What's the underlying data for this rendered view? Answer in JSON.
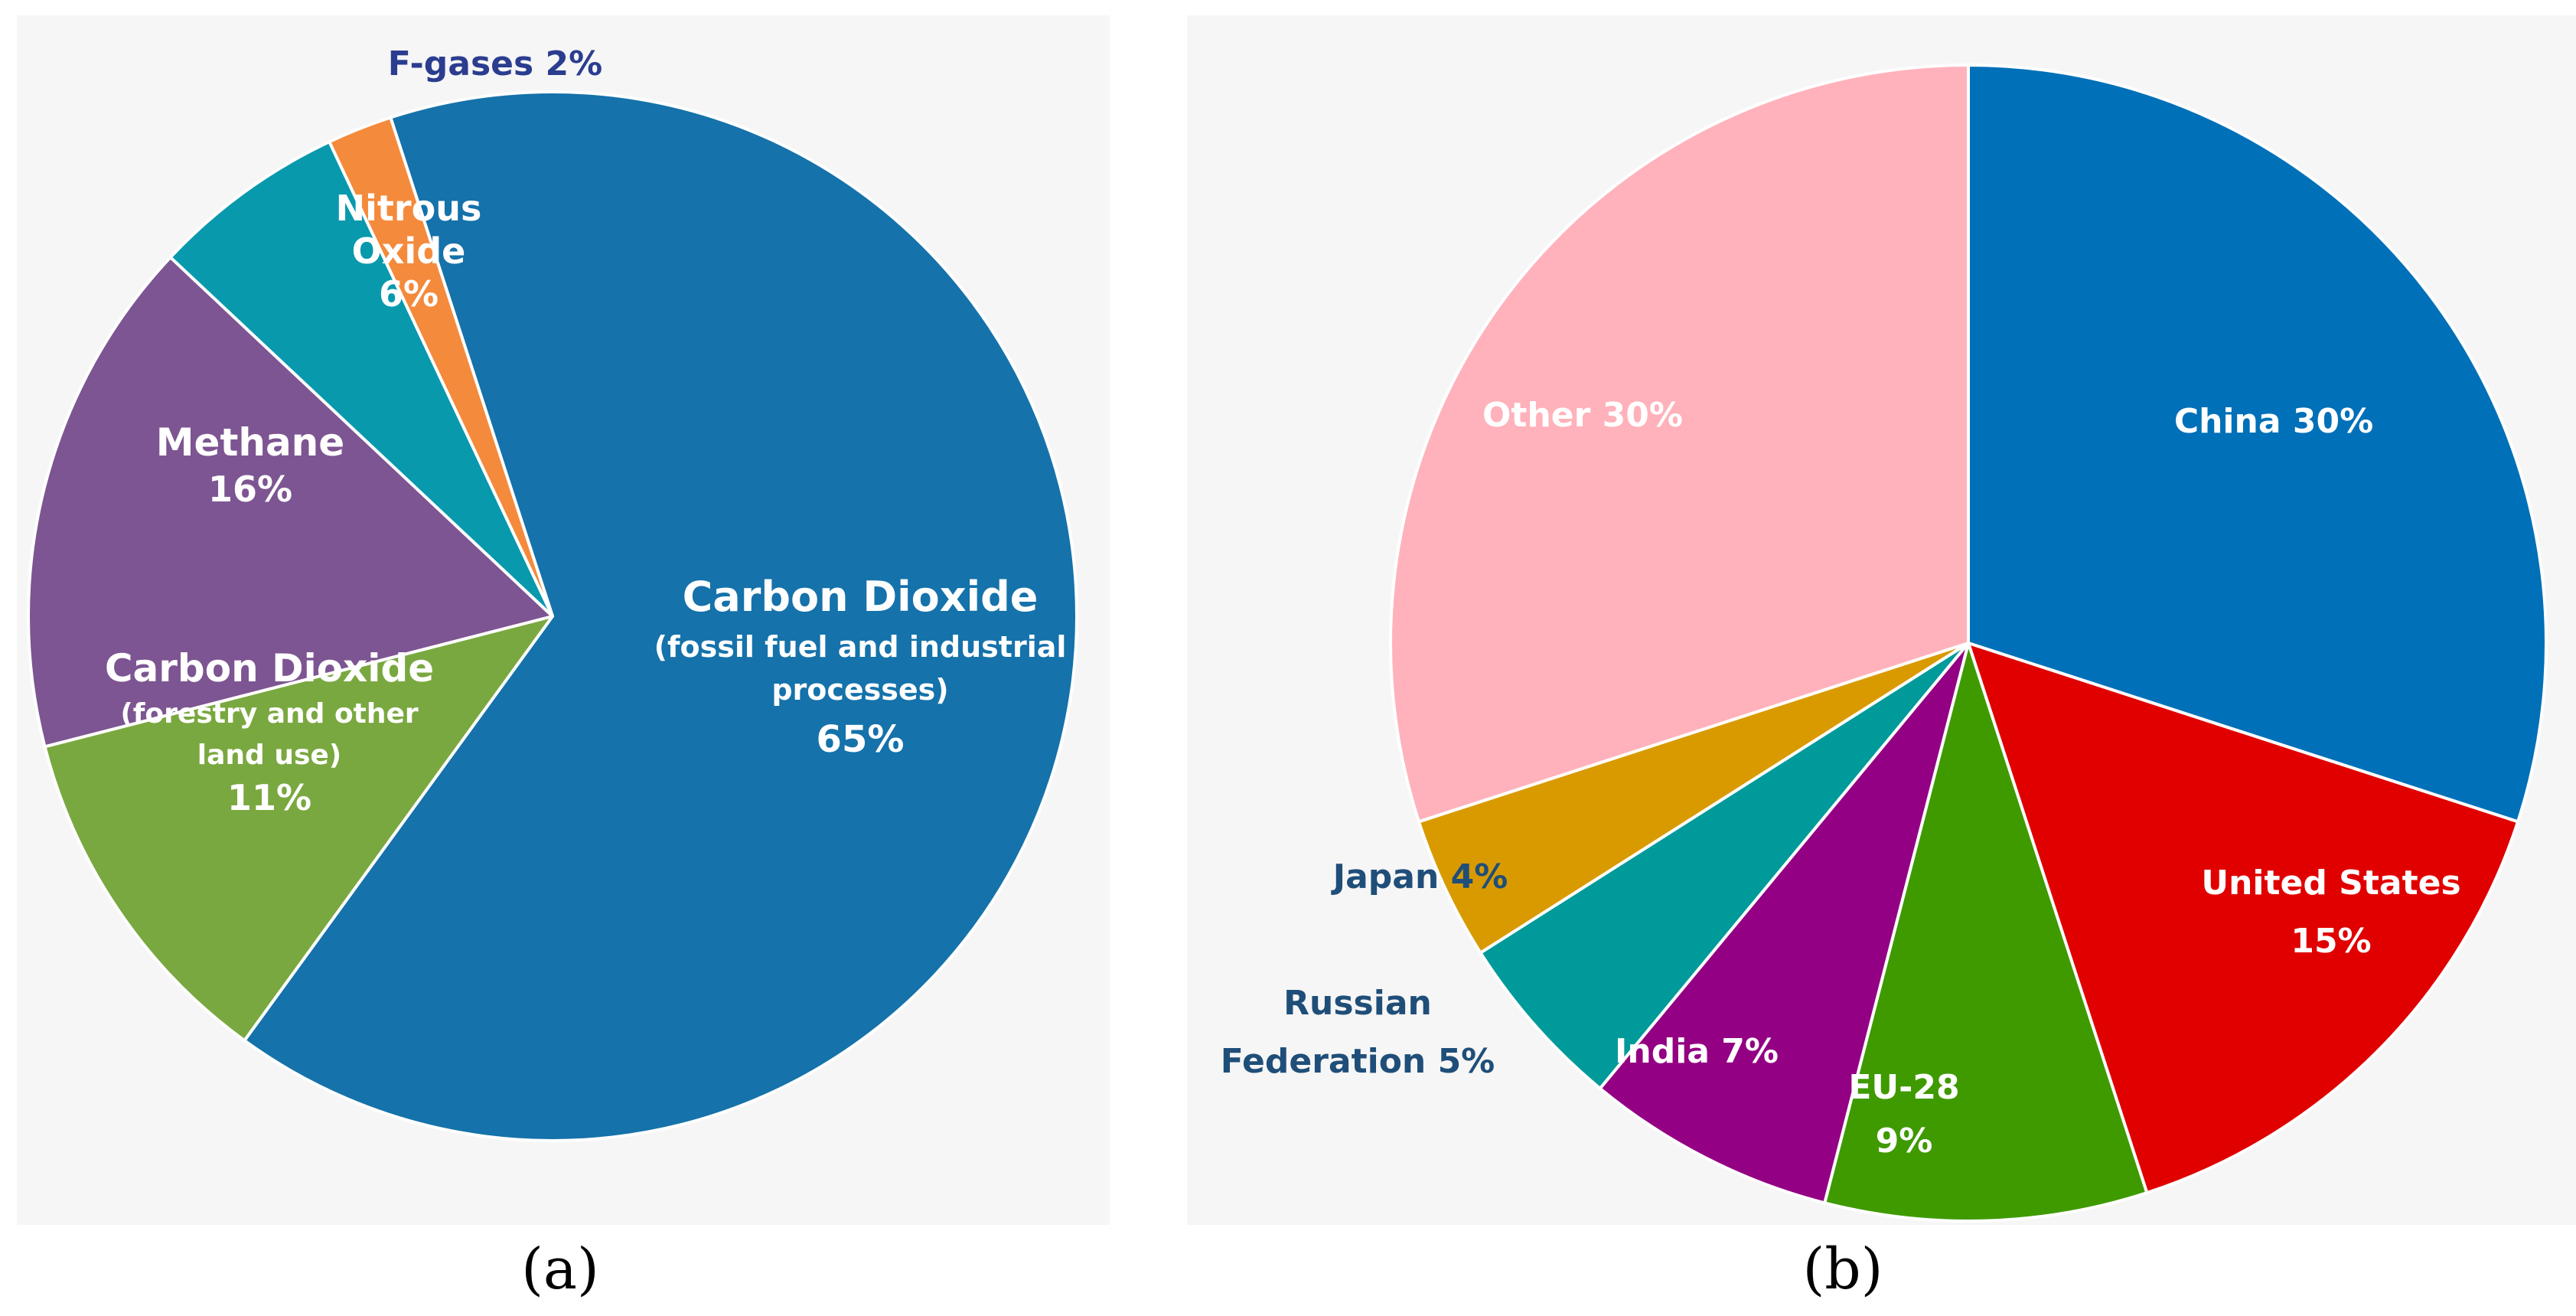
{
  "chart_data": [
    {
      "type": "pie",
      "caption": "(a)",
      "start_angle_deg": -18.0,
      "slices": [
        {
          "name": "Carbon Dioxide (fossil fuel and industrial processes)",
          "value": 65,
          "color": "#1572aa",
          "label_lines": [
            "Carbon Dioxide",
            "(fossil fuel and industrial",
            "processes)",
            "65%"
          ],
          "label_color": "#ffffff"
        },
        {
          "name": "Carbon Dioxide (forestry and other land use)",
          "value": 11,
          "color": "#7aa840",
          "label_lines": [
            "Carbon Dioxide",
            "(forestry and other",
            "land use)",
            "11%"
          ],
          "label_color": "#ffffff"
        },
        {
          "name": "Methane",
          "value": 16,
          "color": "#7d5592",
          "label_lines": [
            "Methane",
            "16%"
          ],
          "label_color": "#ffffff"
        },
        {
          "name": "Nitrous Oxide",
          "value": 6,
          "color": "#0899ad",
          "label_lines": [
            "Nitrous",
            "Oxide",
            "6%"
          ],
          "label_color": "#ffffff"
        },
        {
          "name": "F-gases",
          "value": 2,
          "color": "#f48a3b",
          "label_lines": [
            "F-gases 2%"
          ],
          "label_color": "#2b3d8f"
        }
      ]
    },
    {
      "type": "pie",
      "caption": "(b)",
      "start_angle_deg": 0,
      "slices": [
        {
          "name": "China",
          "value": 30,
          "color": "#0070b8",
          "label_lines": [
            "China 30%"
          ],
          "label_color": "#ffffff"
        },
        {
          "name": "United States",
          "value": 15,
          "color": "#e00000",
          "label_lines": [
            "United States",
            "15%"
          ],
          "label_color": "#ffffff"
        },
        {
          "name": "EU-28",
          "value": 9,
          "color": "#3f9a00",
          "label_lines": [
            "EU-28",
            "9%"
          ],
          "label_color": "#ffffff"
        },
        {
          "name": "India",
          "value": 7,
          "color": "#930083",
          "label_lines": [
            "India 7%"
          ],
          "label_color": "#ffffff"
        },
        {
          "name": "Russian Federation",
          "value": 5,
          "color": "#009a9a",
          "label_lines": [
            "Russian",
            "Federation 5%"
          ],
          "label_color": "#1f4e79"
        },
        {
          "name": "Japan",
          "value": 4,
          "color": "#d99a00",
          "label_lines": [
            "Japan 4%"
          ],
          "label_color": "#1f4e79"
        },
        {
          "name": "Other",
          "value": 30,
          "color": "#ffb2bb",
          "label_lines": [
            "Other 30%"
          ],
          "label_color": "#ffffff"
        }
      ]
    }
  ]
}
